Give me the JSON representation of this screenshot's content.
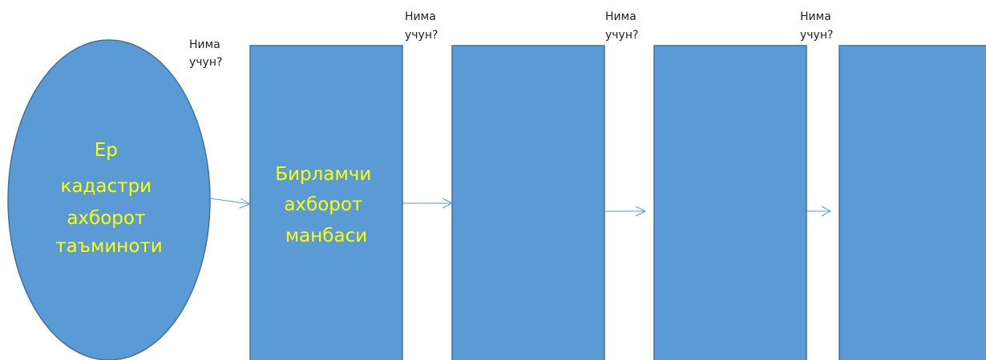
{
  "diagram": {
    "start_node": {
      "lines": [
        "Ер",
        "кадастри",
        "ахборот",
        "таъминоти"
      ]
    },
    "boxes": [
      {
        "lines": [
          "Бирламчи",
          "ахборот",
          "манбаси"
        ]
      },
      {
        "lines": []
      },
      {
        "lines": []
      },
      {
        "lines": []
      }
    ],
    "questions": [
      {
        "line1": "Нима",
        "line2": "учун?"
      },
      {
        "line1": "Нима",
        "line2": "учун?"
      },
      {
        "line1": "Нима",
        "line2": "учун?"
      },
      {
        "line1": "Нима",
        "line2": "учун?"
      }
    ],
    "colors": {
      "shape_fill": "#5b9bd5",
      "shape_border": "#41719c",
      "shape_text": "#ffff00",
      "connector": "#5b9bd5",
      "question_text": "#222222"
    }
  }
}
